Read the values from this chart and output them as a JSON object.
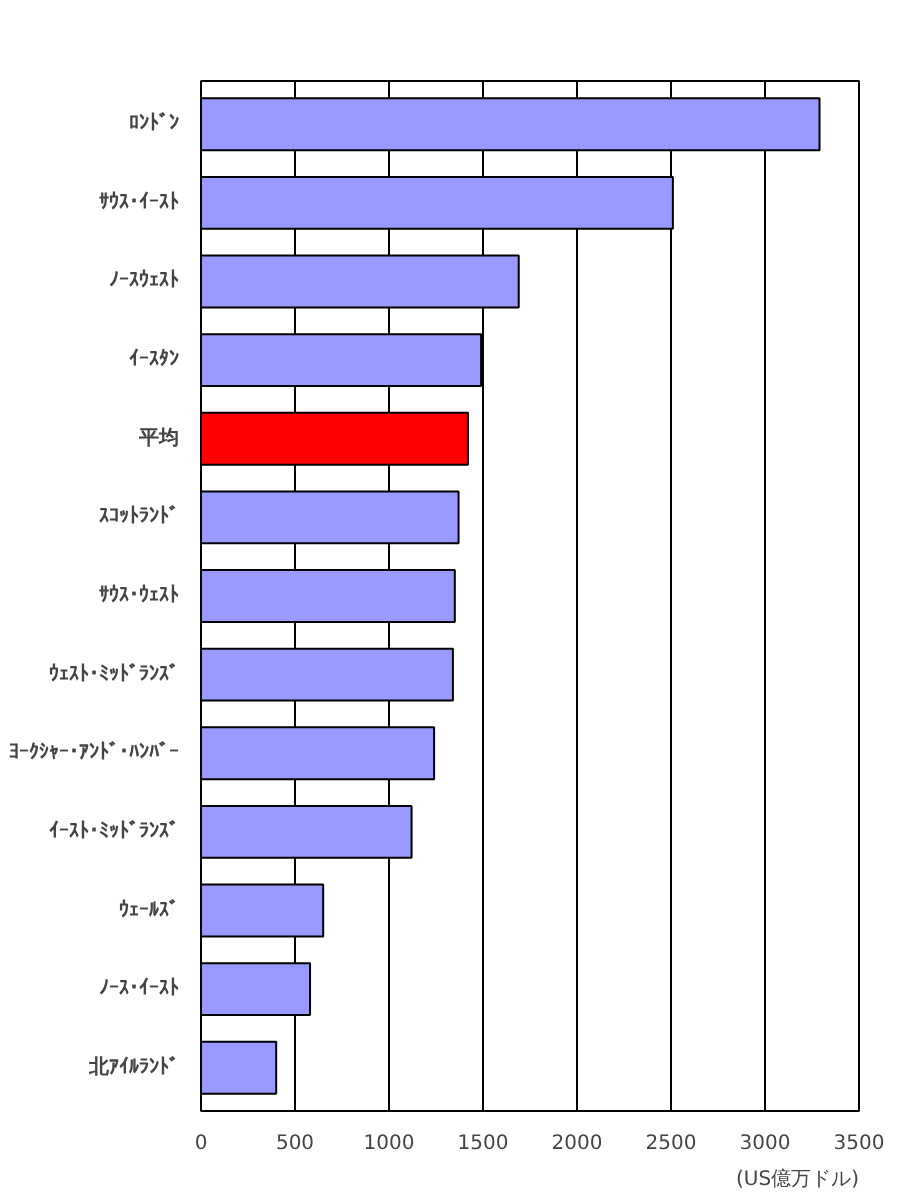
{
  "chart_data": {
    "type": "bar",
    "orientation": "horizontal",
    "categories": [
      "ﾛﾝﾄﾞﾝ",
      "ｻｳｽ･ｲｰｽﾄ",
      "ﾉｰｽｳｪｽﾄ",
      "ｲｰｽﾀﾝ",
      "平均",
      "ｽｺｯﾄﾗﾝﾄﾞ",
      "ｻｳｽ･ｳｪｽﾄ",
      "ｳｪｽﾄ･ﾐｯﾄﾞﾗﾝｽﾞ",
      "ﾖｰｸｼｬｰ･ｱﾝﾄﾞ･ﾊﾝﾊﾞｰ",
      "ｲｰｽﾄ･ﾐｯﾄﾞﾗﾝｽﾞ",
      "ｳｪｰﾙｽﾞ",
      "ﾉｰｽ･ｲｰｽﾄ",
      "北ｱｲﾙﾗﾝﾄﾞ"
    ],
    "values": [
      3290,
      2510,
      1690,
      1490,
      1420,
      1370,
      1350,
      1340,
      1240,
      1120,
      650,
      580,
      400
    ],
    "colors": [
      "#9999ff",
      "#9999ff",
      "#9999ff",
      "#9999ff",
      "#ff0000",
      "#9999ff",
      "#9999ff",
      "#9999ff",
      "#9999ff",
      "#9999ff",
      "#9999ff",
      "#9999ff",
      "#9999ff"
    ],
    "xlim": [
      0,
      3500
    ],
    "xticks": [
      0,
      500,
      1000,
      1500,
      2000,
      2500,
      3000,
      3500
    ],
    "grid": "x",
    "annotations": [
      "(US億万ドル)"
    ]
  }
}
